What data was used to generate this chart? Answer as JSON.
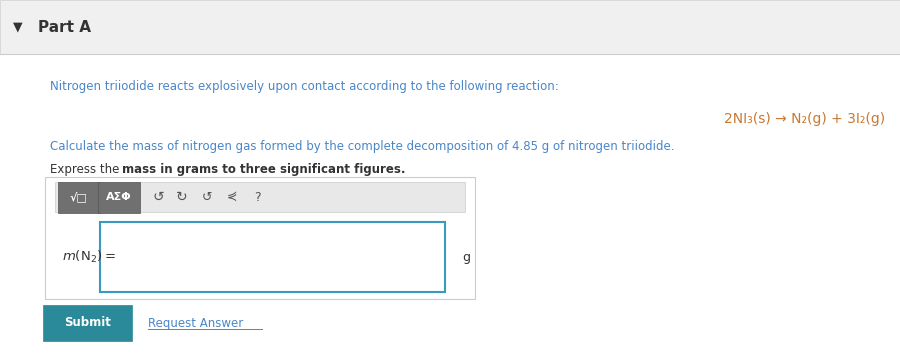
{
  "bg_color": "#f5f5f5",
  "white_bg": "#ffffff",
  "part_a_text": "Part A",
  "part_a_color": "#333333",
  "header_bg": "#f0f0f0",
  "blue_text_color": "#4a86c8",
  "orange_text_color": "#c87832",
  "dark_text_color": "#333333",
  "line1": "Nitrogen triiodide reacts explosively upon contact according to the following reaction:",
  "reaction": "2NI₃(s) → N₂(g) + 3I₂(g)",
  "line2_part1": "Calculate the mass of nitrogen gas formed by the complete decomposition of ",
  "line2_highlight": "4.85 g",
  "line2_part2": " of nitrogen triiodide.",
  "line3_normal": "Express the ",
  "line3_bold": "mass in grams to three significant figures.",
  "label_text": "m(N₂) =",
  "unit_text": "g",
  "submit_text": "Submit",
  "request_text": "Request Answer",
  "submit_bg": "#2a8a9a",
  "submit_text_color": "#ffffff",
  "toolbar_bg": "#888888",
  "input_border": "#3a9abd",
  "box_border": "#cccccc"
}
